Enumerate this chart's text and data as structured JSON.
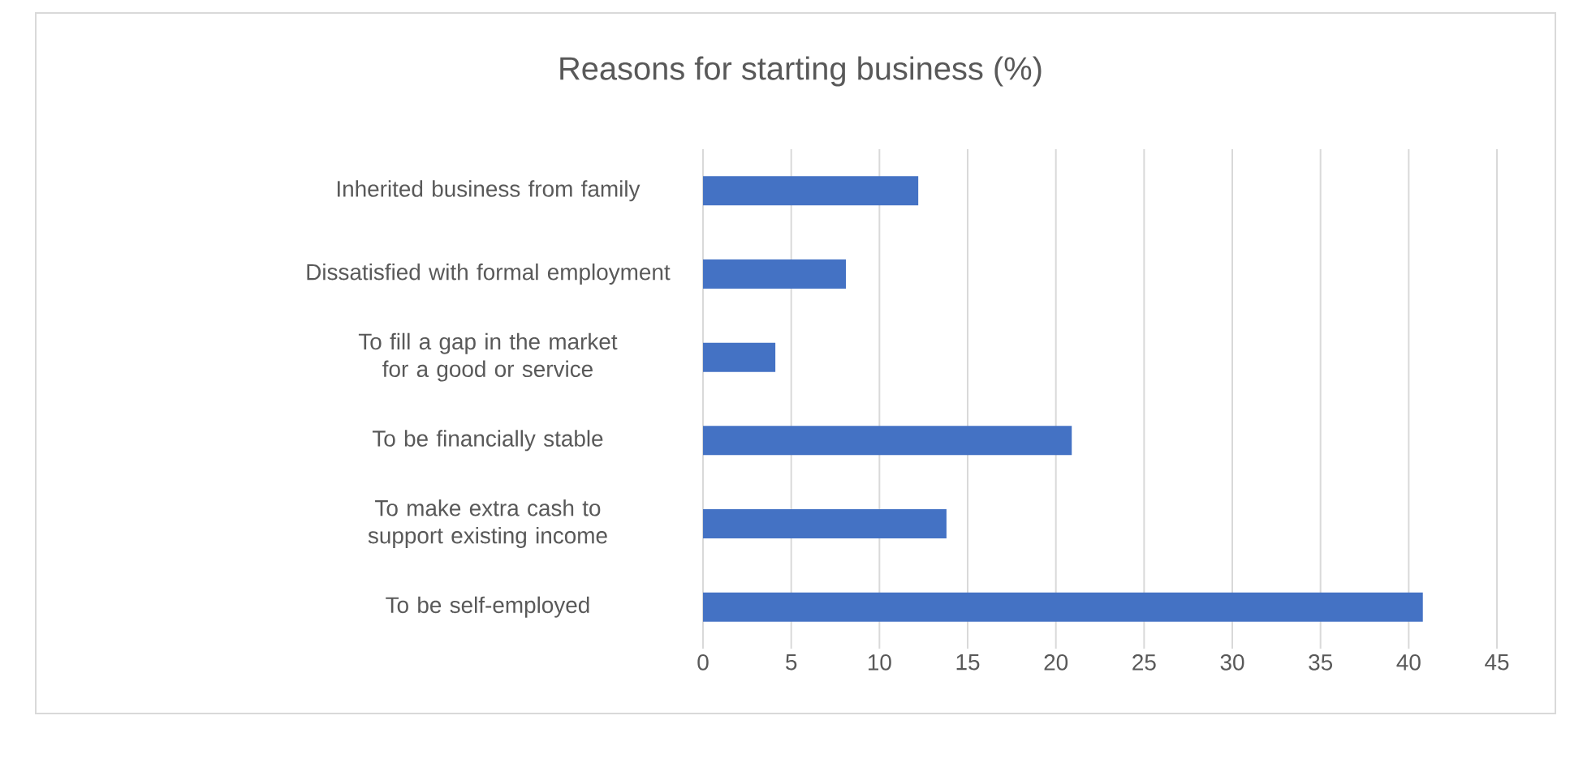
{
  "chart_data": {
    "type": "bar",
    "orientation": "horizontal",
    "title": "Reasons for starting business (%)",
    "categories": [
      "Inherited business from family",
      "Dissatisfied with formal employment",
      "To fill a gap in the market for a good or service",
      "To be financially stable",
      "To make extra cash to support existing income",
      "To be self-employed"
    ],
    "values": [
      12.2,
      8.1,
      4.1,
      20.9,
      13.8,
      40.8
    ],
    "color": "#4472c4",
    "xlim": [
      0,
      45
    ],
    "xticks": [
      0,
      5,
      10,
      15,
      20,
      25,
      30,
      35,
      40,
      45
    ],
    "grid": "x"
  }
}
